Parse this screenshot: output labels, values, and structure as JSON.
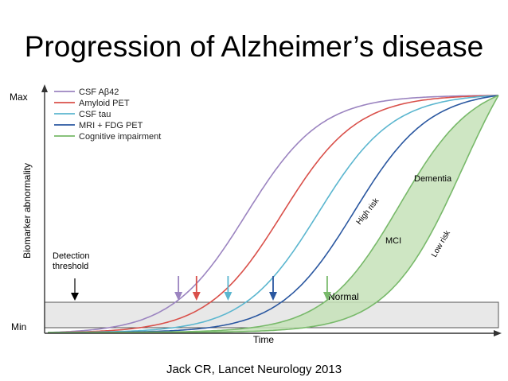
{
  "slide": {
    "title": "Progression of Alzheimer’s disease",
    "citation": "Jack CR, Lancet Neurology 2013"
  },
  "chart_data": {
    "type": "line",
    "xlabel": "Time",
    "ylabel": "Biomarker abnormality",
    "y_ticks": [
      "Max",
      "Min"
    ],
    "legend_position": "top-left",
    "detection_threshold_label": "Detection\nthreshold",
    "band_label": "Normal",
    "regions": [
      "Dementia",
      "MCI",
      "High risk",
      "Low risk"
    ],
    "series": [
      {
        "name": "CSF Aβ42",
        "color": "#9b84c0",
        "midpoint": 0.44,
        "threshold_crossing": 0.29
      },
      {
        "name": "Amyloid PET",
        "color": "#d9504a",
        "midpoint": 0.52,
        "threshold_crossing": 0.33
      },
      {
        "name": "CSF tau",
        "color": "#5bb6cf",
        "midpoint": 0.6,
        "threshold_crossing": 0.4
      },
      {
        "name": "MRI + FDG PET",
        "color": "#2a57a0",
        "midpoint": 0.68,
        "threshold_crossing": 0.5
      },
      {
        "name": "Cognitive impairment",
        "color": "#78b96a",
        "midpoint_high_risk": 0.78,
        "midpoint_low_risk": 0.92,
        "threshold_crossing": 0.62
      }
    ],
    "colors": {
      "normal_band": "#e8e8e8",
      "cognitive_fill": "#c6e2b9",
      "axis": "#333333"
    }
  }
}
